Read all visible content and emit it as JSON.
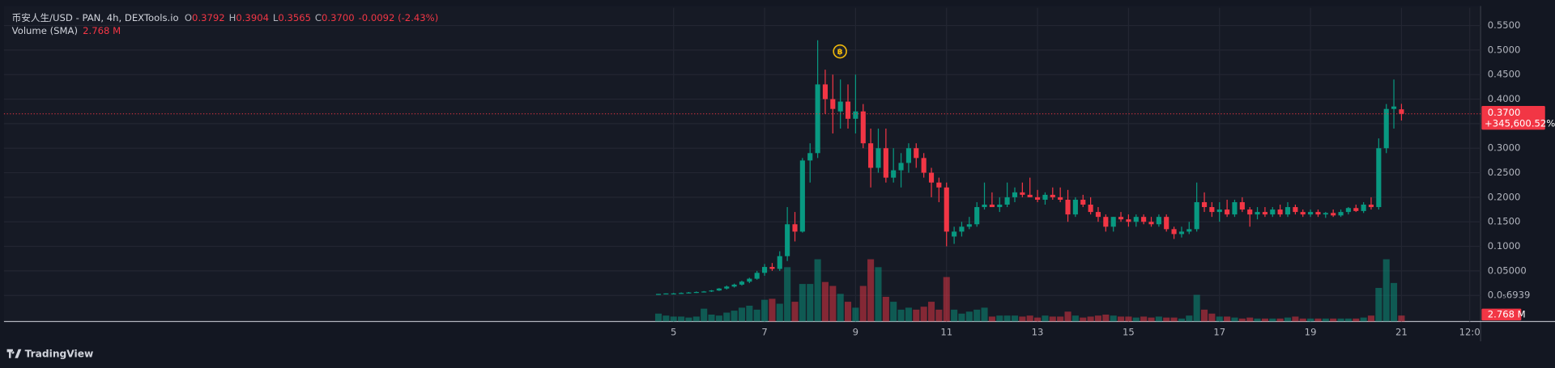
{
  "chart_data": {
    "type": "candlestick",
    "title": "币安人生/USD - PAN, 4h, DEXTools.io",
    "legend": [
      {
        "key": "O",
        "value": "0.3792"
      },
      {
        "key": "H",
        "value": "0.3904"
      },
      {
        "key": "L",
        "value": "0.3565"
      },
      {
        "key": "C",
        "value": "0.3700"
      }
    ],
    "change_label": "-0.0092 (-2.43%)",
    "volume_title": "Volume (SMA)",
    "volume_label": "2.768 M",
    "last_price_label": "0.3700",
    "last_change_label": "+345,600.52%",
    "x": [
      4.667,
      4.833,
      5,
      5.167,
      5.333,
      5.5,
      5.667,
      5.833,
      6,
      6.167,
      6.333,
      6.5,
      6.667,
      6.833,
      7,
      7.167,
      7.333,
      7.5,
      7.667,
      7.833,
      8,
      8.167,
      8.333,
      8.5,
      8.667,
      8.833,
      9,
      9.167,
      9.333,
      9.5,
      9.667,
      9.833,
      10,
      10.167,
      10.333,
      10.5,
      10.667,
      10.833,
      11,
      11.167,
      11.333,
      11.5,
      11.667,
      11.833,
      12,
      12.167,
      12.333,
      12.5,
      12.667,
      12.833,
      13,
      13.167,
      13.333,
      13.5,
      13.667,
      13.833,
      14,
      14.167,
      14.333,
      14.5,
      14.667,
      14.833,
      15,
      15.167,
      15.333,
      15.5,
      15.667,
      15.833,
      16,
      16.167,
      16.333,
      16.5,
      16.667,
      16.833,
      17,
      17.167,
      17.333,
      17.5,
      17.667,
      17.833,
      18,
      18.167,
      18.333,
      18.5,
      18.667,
      18.833,
      19,
      19.167,
      19.333,
      19.5,
      19.667,
      19.833,
      20,
      20.167,
      20.333,
      20.5,
      20.667,
      20.833,
      21
    ],
    "open": [
      0.002,
      0.003,
      0.004,
      0.004,
      0.005,
      0.006,
      0.007,
      0.008,
      0.01,
      0.014,
      0.018,
      0.022,
      0.028,
      0.034,
      0.046,
      0.058,
      0.054,
      0.08,
      0.145,
      0.13,
      0.275,
      0.29,
      0.43,
      0.4,
      0.375,
      0.395,
      0.36,
      0.375,
      0.31,
      0.26,
      0.3,
      0.24,
      0.255,
      0.27,
      0.3,
      0.28,
      0.25,
      0.23,
      0.22,
      0.12,
      0.13,
      0.14,
      0.145,
      0.18,
      0.185,
      0.18,
      0.185,
      0.2,
      0.21,
      0.205,
      0.2,
      0.195,
      0.205,
      0.2,
      0.195,
      0.165,
      0.195,
      0.185,
      0.17,
      0.16,
      0.14,
      0.16,
      0.155,
      0.15,
      0.16,
      0.15,
      0.145,
      0.16,
      0.135,
      0.125,
      0.13,
      0.135,
      0.19,
      0.18,
      0.17,
      0.175,
      0.165,
      0.19,
      0.175,
      0.165,
      0.17,
      0.165,
      0.175,
      0.165,
      0.18,
      0.17,
      0.165,
      0.17,
      0.165,
      0.168,
      0.163,
      0.17,
      0.178,
      0.172,
      0.185,
      0.18,
      0.3,
      0.38,
      0.3792
    ],
    "high": [
      0.003,
      0.004,
      0.005,
      0.006,
      0.007,
      0.008,
      0.009,
      0.011,
      0.015,
      0.02,
      0.024,
      0.03,
      0.036,
      0.05,
      0.064,
      0.066,
      0.09,
      0.18,
      0.17,
      0.28,
      0.31,
      0.52,
      0.46,
      0.45,
      0.44,
      0.43,
      0.45,
      0.39,
      0.34,
      0.34,
      0.34,
      0.3,
      0.29,
      0.31,
      0.31,
      0.29,
      0.26,
      0.24,
      0.23,
      0.14,
      0.15,
      0.16,
      0.19,
      0.23,
      0.21,
      0.2,
      0.23,
      0.22,
      0.23,
      0.24,
      0.215,
      0.21,
      0.22,
      0.22,
      0.215,
      0.2,
      0.205,
      0.2,
      0.18,
      0.165,
      0.16,
      0.17,
      0.165,
      0.165,
      0.165,
      0.16,
      0.165,
      0.165,
      0.14,
      0.14,
      0.15,
      0.23,
      0.21,
      0.19,
      0.19,
      0.195,
      0.195,
      0.2,
      0.18,
      0.18,
      0.18,
      0.18,
      0.185,
      0.19,
      0.185,
      0.175,
      0.175,
      0.175,
      0.17,
      0.175,
      0.175,
      0.18,
      0.185,
      0.19,
      0.2,
      0.32,
      0.39,
      0.44,
      0.3904
    ],
    "low": [
      0.001,
      0.002,
      0.003,
      0.003,
      0.004,
      0.005,
      0.006,
      0.007,
      0.009,
      0.012,
      0.016,
      0.02,
      0.025,
      0.032,
      0.04,
      0.05,
      0.05,
      0.07,
      0.11,
      0.128,
      0.23,
      0.28,
      0.37,
      0.33,
      0.34,
      0.34,
      0.33,
      0.3,
      0.22,
      0.25,
      0.23,
      0.23,
      0.22,
      0.25,
      0.26,
      0.24,
      0.2,
      0.19,
      0.1,
      0.105,
      0.12,
      0.135,
      0.14,
      0.175,
      0.18,
      0.17,
      0.18,
      0.19,
      0.2,
      0.2,
      0.19,
      0.185,
      0.195,
      0.19,
      0.15,
      0.16,
      0.18,
      0.165,
      0.15,
      0.13,
      0.13,
      0.15,
      0.14,
      0.14,
      0.145,
      0.14,
      0.14,
      0.13,
      0.115,
      0.118,
      0.125,
      0.13,
      0.17,
      0.16,
      0.15,
      0.16,
      0.16,
      0.17,
      0.14,
      0.155,
      0.16,
      0.16,
      0.16,
      0.16,
      0.165,
      0.16,
      0.16,
      0.16,
      0.158,
      0.16,
      0.16,
      0.165,
      0.17,
      0.168,
      0.175,
      0.175,
      0.29,
      0.34,
      0.3565
    ],
    "close": [
      0.003,
      0.004,
      0.004,
      0.005,
      0.006,
      0.007,
      0.008,
      0.01,
      0.014,
      0.018,
      0.022,
      0.028,
      0.034,
      0.046,
      0.058,
      0.054,
      0.08,
      0.145,
      0.13,
      0.275,
      0.29,
      0.43,
      0.4,
      0.38,
      0.395,
      0.36,
      0.375,
      0.31,
      0.26,
      0.3,
      0.24,
      0.255,
      0.27,
      0.3,
      0.28,
      0.25,
      0.23,
      0.22,
      0.13,
      0.13,
      0.14,
      0.145,
      0.18,
      0.185,
      0.18,
      0.185,
      0.2,
      0.21,
      0.205,
      0.2,
      0.195,
      0.205,
      0.2,
      0.195,
      0.165,
      0.195,
      0.185,
      0.17,
      0.16,
      0.14,
      0.16,
      0.155,
      0.15,
      0.16,
      0.15,
      0.145,
      0.16,
      0.135,
      0.125,
      0.13,
      0.135,
      0.19,
      0.18,
      0.17,
      0.175,
      0.165,
      0.19,
      0.175,
      0.165,
      0.17,
      0.165,
      0.175,
      0.165,
      0.18,
      0.17,
      0.165,
      0.17,
      0.165,
      0.168,
      0.163,
      0.17,
      0.178,
      0.172,
      0.185,
      0.18,
      0.3,
      0.38,
      0.385,
      0.37
    ],
    "volume": [
      3.68,
      2.76,
      2.3,
      2.3,
      1.84,
      2.3,
      5.98,
      3.22,
      2.76,
      4.14,
      5.06,
      6.44,
      7.36,
      5.52,
      10.12,
      10.58,
      8.28,
      25.3,
      9.2,
      17.48,
      17.48,
      28.98,
      18.4,
      16.56,
      12.88,
      9.2,
      6.44,
      16.56,
      28.98,
      25.3,
      11.5,
      9.2,
      5.52,
      6.44,
      5.52,
      6.9,
      9.2,
      5.52,
      20.7,
      5.52,
      3.68,
      4.6,
      5.52,
      6.44,
      2.3,
      2.76,
      2.76,
      2.76,
      2.3,
      2.76,
      1.84,
      2.76,
      2.3,
      2.3,
      4.6,
      2.76,
      1.84,
      2.3,
      2.76,
      3.22,
      2.76,
      2.3,
      2.3,
      1.84,
      2.3,
      1.84,
      2.3,
      1.84,
      1.84,
      1.38,
      2.76,
      12.42,
      5.52,
      3.68,
      2.3,
      2.3,
      1.84,
      1.38,
      1.84,
      1.38,
      1.38,
      1.38,
      1.38,
      1.84,
      2.3,
      1.38,
      1.38,
      1.38,
      1.38,
      1.38,
      1.38,
      1.38,
      1.38,
      1.84,
      2.76,
      15.64,
      28.98,
      17.94,
      2.768
    ],
    "up_color": "#089981",
    "down_color": "#f23645",
    "xlim": [
      -9.72,
      22.74
    ],
    "xticks": [
      5,
      7,
      9,
      11,
      13,
      15,
      17,
      19,
      21,
      {
        "value": 22.5,
        "label": "12:0"
      }
    ],
    "ylim": [
      -0.0532,
      0.5859
    ],
    "yticks": [
      {
        "value": 0.55,
        "label": "0.5500"
      },
      {
        "value": 0.5,
        "label": "0.5000"
      },
      {
        "value": 0.45,
        "label": "0.4500"
      },
      {
        "value": 0.4,
        "label": "0.4000"
      },
      {
        "value": 0.35,
        "label": "0.3500"
      },
      {
        "value": 0.3,
        "label": "0.3000"
      },
      {
        "value": 0.25,
        "label": "0.2500"
      },
      {
        "value": 0.2,
        "label": "0.2000"
      },
      {
        "value": 0.15,
        "label": "0.1500"
      },
      {
        "value": 0.1,
        "label": "0.1000"
      },
      {
        "value": 0.05,
        "label": "0.05000"
      },
      {
        "value": 6.939e-06,
        "label": "0.0₅6939"
      }
    ],
    "volume_ylim": [
      0,
      146
    ],
    "grid": true
  },
  "footer": {
    "brand": "TradingView"
  }
}
